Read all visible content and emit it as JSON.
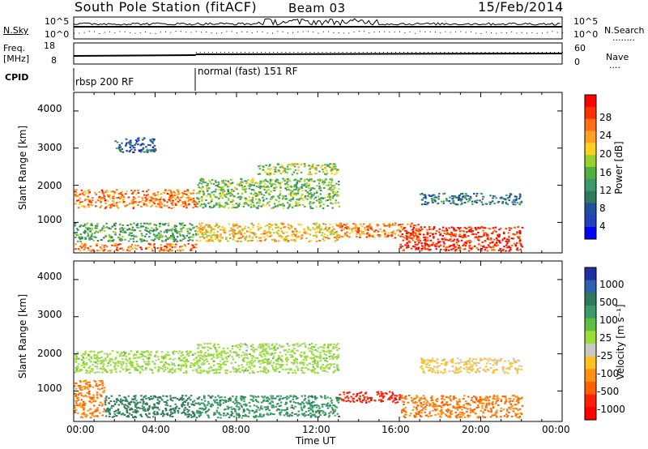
{
  "header": {
    "station": "South Pole Station (fitACF)",
    "beam": "Beam 03",
    "date": "15/Feb/2014"
  },
  "noise_panel": {
    "left_label": "N.Sky",
    "right_label": "N.Search",
    "right_legend": "........",
    "scale_top": "10^5",
    "scale_bottom": "10^0"
  },
  "freq_panel": {
    "left_label_1": "Freq.",
    "left_label_2": "[MHz]",
    "left_top": "18",
    "left_bottom": "8",
    "right_label": "Nave",
    "right_legend": "....",
    "right_top": "60",
    "right_bottom": "0"
  },
  "cpid_panel": {
    "label": "CPID",
    "segments": [
      {
        "name": "rbsp 200 RF",
        "start_hour": 0,
        "end_hour": 6
      },
      {
        "name": "normal (fast) 151 RF",
        "start_hour": 6,
        "end_hour": 24
      }
    ]
  },
  "power_panel": {
    "ylabel": "Slant Range [km]",
    "yticks": [
      "4000",
      "3000",
      "2000",
      "1000"
    ],
    "colorbar_label": "Power [dB]",
    "colorbar_ticks": [
      "28",
      "24",
      "20",
      "16",
      "12",
      "8",
      "4"
    ],
    "colorbar_colors": [
      "#ff0000",
      "#ff3000",
      "#ff7010",
      "#ffa020",
      "#ffd020",
      "#9ad02a",
      "#52b040",
      "#3c9a6a",
      "#2f7a58",
      "#1f4fa0",
      "#2040c0",
      "#0000ff"
    ]
  },
  "velocity_panel": {
    "ylabel": "Slant Range [km]",
    "yticks": [
      "4000",
      "3000",
      "2000",
      "1000"
    ],
    "colorbar_label": "Velocity [m s⁻¹]",
    "colorbar_ticks": [
      "1000",
      "500",
      "100",
      "25",
      "-25",
      "-100",
      "-500",
      "-1000"
    ],
    "colorbar_colors": [
      "#2030a0",
      "#3060b0",
      "#2f7a58",
      "#3a9a68",
      "#5ec040",
      "#9adc3a",
      "#c8c8c4",
      "#ffc020",
      "#ff9010",
      "#ff6000",
      "#ff2000",
      "#ff0000"
    ]
  },
  "x_axis": {
    "ticks": [
      "00:00",
      "04:00",
      "08:00",
      "12:00",
      "16:00",
      "20:00",
      "00:00"
    ],
    "label": "Time UT"
  },
  "chart_data": {
    "type": "heatmap",
    "x_range_hours": [
      0,
      24
    ],
    "y_range_km": [
      180,
      4500
    ],
    "power_regions": [
      {
        "t": [
          0,
          6
        ],
        "r": [
          1400,
          1900
        ],
        "db": 24
      },
      {
        "t": [
          0,
          6
        ],
        "r": [
          500,
          1000
        ],
        "db": 12
      },
      {
        "t": [
          0,
          6
        ],
        "r": [
          250,
          450
        ],
        "db": 24
      },
      {
        "t": [
          2,
          4
        ],
        "r": [
          2900,
          3300
        ],
        "db": 6
      },
      {
        "t": [
          6,
          13
        ],
        "r": [
          1400,
          2200
        ],
        "db": 14
      },
      {
        "t": [
          6,
          13
        ],
        "r": [
          500,
          1000
        ],
        "db": 20
      },
      {
        "t": [
          9,
          13
        ],
        "r": [
          2300,
          2600
        ],
        "db": 16
      },
      {
        "t": [
          13,
          17
        ],
        "r": [
          600,
          1000
        ],
        "db": 24
      },
      {
        "t": [
          16,
          22
        ],
        "r": [
          250,
          900
        ],
        "db": 28
      },
      {
        "t": [
          17,
          22
        ],
        "r": [
          1500,
          1800
        ],
        "db": 8
      }
    ],
    "velocity_regions": [
      {
        "t": [
          0,
          6
        ],
        "r": [
          1500,
          2100
        ],
        "ms": 0
      },
      {
        "t": [
          0,
          1.5
        ],
        "r": [
          300,
          1300
        ],
        "ms": -300
      },
      {
        "t": [
          1.5,
          6
        ],
        "r": [
          300,
          900
        ],
        "ms": 150
      },
      {
        "t": [
          6,
          13
        ],
        "r": [
          1500,
          2300
        ],
        "ms": 0
      },
      {
        "t": [
          6,
          13
        ],
        "r": [
          300,
          900
        ],
        "ms": 80
      },
      {
        "t": [
          13,
          16
        ],
        "r": [
          700,
          1000
        ],
        "ms": -800
      },
      {
        "t": [
          16,
          22
        ],
        "r": [
          300,
          900
        ],
        "ms": -300
      },
      {
        "t": [
          17,
          22
        ],
        "r": [
          1500,
          1900
        ],
        "ms": -60
      }
    ]
  }
}
